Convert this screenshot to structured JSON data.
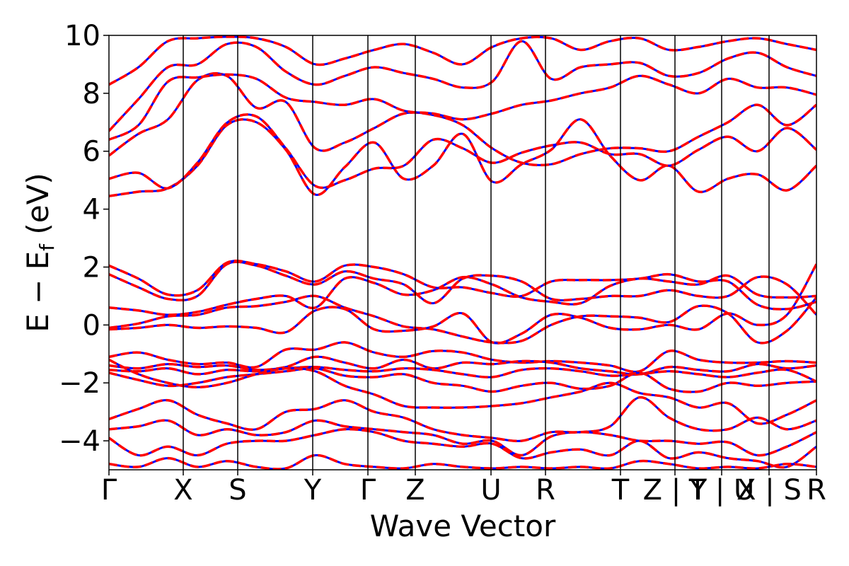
{
  "chart_data": {
    "type": "line",
    "title": "",
    "xlabel": "Wave Vector",
    "ylabel": "E − E_f (eV)",
    "ylabel_parts": {
      "main": "E − E",
      "sub": "f",
      "tail": " (eV)"
    },
    "ylim": [
      -5,
      10
    ],
    "yticks": [
      -4,
      -2,
      0,
      2,
      4,
      6,
      8,
      10
    ],
    "ytick_labels": [
      "−4",
      "−2",
      "0",
      "2",
      "4",
      "6",
      "8",
      "10"
    ],
    "x_range": [
      0,
      10
    ],
    "kpoint_positions": [
      0,
      1.05,
      1.82,
      2.88,
      3.66,
      4.33,
      5.4,
      6.17,
      7.23,
      8.0,
      8.66,
      9.33,
      10
    ],
    "kpoint_labels": [
      {
        "x": 0,
        "label": "Γ"
      },
      {
        "x": 1.05,
        "label": "X"
      },
      {
        "x": 1.82,
        "label": "S"
      },
      {
        "x": 2.88,
        "label": "Y"
      },
      {
        "x": 3.66,
        "label": "Γ"
      },
      {
        "x": 4.33,
        "label": "Z"
      },
      {
        "x": 5.4,
        "label": "U"
      },
      {
        "x": 6.17,
        "label": "R"
      },
      {
        "x": 7.23,
        "label": "T"
      },
      {
        "x": 8.0,
        "label": "Z | Y"
      },
      {
        "x": 8.66,
        "label": "T | U"
      },
      {
        "x": 9.33,
        "label": "X | S"
      },
      {
        "x": 10,
        "label": "R"
      }
    ],
    "grid": false,
    "series": [
      {
        "color": "#0000ff",
        "style": "solid"
      },
      {
        "color": "#ff0000",
        "style": "dashed"
      }
    ],
    "bands": [
      [
        4.45,
        4.6,
        4.72,
        5.5,
        6.9,
        7.0,
        6.05,
        4.5,
        5.45,
        6.3,
        5.05,
        5.5,
        6.6,
        4.95,
        5.55,
        6.05,
        7.1,
        5.85,
        5.0,
        5.5,
        4.6,
        5.05,
        5.2,
        4.65,
        5.5
      ],
      [
        5.05,
        5.25,
        4.72,
        5.6,
        6.98,
        7.2,
        6.1,
        4.8,
        5.0,
        5.4,
        5.5,
        6.4,
        6.1,
        5.6,
        5.95,
        6.2,
        6.3,
        5.9,
        5.9,
        5.5,
        6.05,
        6.5,
        6.0,
        6.8,
        6.05
      ],
      [
        5.85,
        6.6,
        7.1,
        8.45,
        8.6,
        7.5,
        7.7,
        6.1,
        6.3,
        6.8,
        7.3,
        7.25,
        6.9,
        6.1,
        5.6,
        5.55,
        5.9,
        6.1,
        6.1,
        6.0,
        6.5,
        7.0,
        7.6,
        6.9,
        7.6
      ],
      [
        6.4,
        6.9,
        8.4,
        8.55,
        8.65,
        8.5,
        7.85,
        7.7,
        7.6,
        7.8,
        7.4,
        7.3,
        7.1,
        7.3,
        7.6,
        7.75,
        8.0,
        8.2,
        8.6,
        8.3,
        8.0,
        8.5,
        8.2,
        8.2,
        7.95
      ],
      [
        6.7,
        7.8,
        8.9,
        9.0,
        9.7,
        9.6,
        8.75,
        8.3,
        8.6,
        8.9,
        8.7,
        8.5,
        8.2,
        8.4,
        9.8,
        8.5,
        8.9,
        9.0,
        9.05,
        8.6,
        8.7,
        9.2,
        9.4,
        8.9,
        8.6
      ],
      [
        8.3,
        8.9,
        9.8,
        9.9,
        9.95,
        9.9,
        9.6,
        9.0,
        9.2,
        9.5,
        9.7,
        9.4,
        9.0,
        9.6,
        9.9,
        9.9,
        9.5,
        9.8,
        9.9,
        9.5,
        9.6,
        9.8,
        9.9,
        9.7,
        9.5
      ],
      [
        0.6,
        0.5,
        0.35,
        0.45,
        0.7,
        0.9,
        1.0,
        0.6,
        1.6,
        1.45,
        1.05,
        1.2,
        1.65,
        1.4,
        0.95,
        0.8,
        0.75,
        1.35,
        1.6,
        1.5,
        1.4,
        1.7,
        1.05,
        0.95,
        1.0
      ],
      [
        1.75,
        1.3,
        0.9,
        1.0,
        2.1,
        2.05,
        1.7,
        1.4,
        1.85,
        1.6,
        1.4,
        0.75,
        1.6,
        1.7,
        1.5,
        0.9,
        0.9,
        1.0,
        1.0,
        1.2,
        1.0,
        1.0,
        1.65,
        1.4,
        0.35
      ],
      [
        2.05,
        1.6,
        1.05,
        1.2,
        2.15,
        2.1,
        1.85,
        1.5,
        2.05,
        2.0,
        1.75,
        1.3,
        1.3,
        1.1,
        1.0,
        1.5,
        1.55,
        1.55,
        1.6,
        1.75,
        1.5,
        1.5,
        0.7,
        0.55,
        0.8
      ],
      [
        -0.1,
        0.05,
        0.3,
        0.35,
        0.6,
        0.65,
        0.8,
        1.0,
        0.6,
        0.3,
        -0.05,
        -0.15,
        -0.4,
        -0.6,
        -0.55,
        0.0,
        0.3,
        0.3,
        0.25,
        0.1,
        0.65,
        0.4,
        -0.6,
        -0.2,
        0.95
      ],
      [
        -0.15,
        -0.1,
        0.0,
        -0.1,
        -0.05,
        -0.1,
        -0.25,
        0.5,
        0.55,
        -0.15,
        -0.2,
        -0.05,
        0.4,
        -0.6,
        -0.3,
        0.35,
        0.25,
        -0.1,
        -0.15,
        0.0,
        -0.15,
        0.4,
        0.0,
        0.35,
        2.1
      ],
      [
        -1.1,
        -0.95,
        -1.2,
        -1.35,
        -1.3,
        -1.45,
        -0.85,
        -0.85,
        -0.6,
        -0.95,
        -1.1,
        -0.9,
        -0.95,
        -1.2,
        -1.3,
        -1.25,
        -1.3,
        -1.4,
        -1.6,
        -0.9,
        -1.2,
        -1.3,
        -1.3,
        -1.25,
        -1.3
      ],
      [
        -1.4,
        -1.5,
        -1.35,
        -1.45,
        -1.4,
        -1.55,
        -1.45,
        -1.1,
        -1.3,
        -1.5,
        -1.2,
        -1.5,
        -1.3,
        -1.35,
        -1.25,
        -1.3,
        -1.5,
        -1.6,
        -1.7,
        -1.45,
        -1.55,
        -1.6,
        -1.35,
        -1.5,
        -1.4
      ],
      [
        -1.55,
        -1.6,
        -1.5,
        -1.7,
        -1.55,
        -1.6,
        -1.5,
        -1.45,
        -1.55,
        -1.6,
        -1.5,
        -1.55,
        -1.7,
        -1.8,
        -1.55,
        -1.5,
        -1.6,
        -1.75,
        -1.7,
        -1.6,
        -1.7,
        -1.8,
        -1.65,
        -1.55,
        -1.95
      ],
      [
        -1.65,
        -1.9,
        -2.1,
        -2.0,
        -1.8,
        -1.7,
        -1.6,
        -1.5,
        -1.75,
        -1.8,
        -1.7,
        -2.0,
        -2.1,
        -2.3,
        -2.1,
        -2.0,
        -2.2,
        -2.1,
        -1.65,
        -2.2,
        -2.3,
        -2.0,
        -2.1,
        -2.0,
        -1.95
      ],
      [
        -1.2,
        -1.7,
        -2.0,
        -2.15,
        -2.0,
        -1.7,
        -1.5,
        -1.6,
        -2.1,
        -2.4,
        -2.8,
        -2.85,
        -2.85,
        -2.8,
        -2.7,
        -2.5,
        -2.3,
        -2.0,
        -2.35,
        -2.5,
        -2.85,
        -2.7,
        -3.4,
        -3.1,
        -2.6
      ],
      [
        -3.25,
        -2.9,
        -2.6,
        -3.1,
        -3.4,
        -3.6,
        -3.0,
        -2.9,
        -2.6,
        -3.0,
        -3.2,
        -3.6,
        -3.8,
        -3.9,
        -4.0,
        -3.7,
        -3.7,
        -3.5,
        -2.5,
        -3.2,
        -3.6,
        -3.6,
        -3.2,
        -3.6,
        -3.3
      ],
      [
        -3.6,
        -3.5,
        -3.3,
        -3.8,
        -3.6,
        -3.8,
        -3.7,
        -3.3,
        -3.5,
        -3.6,
        -3.7,
        -3.8,
        -4.1,
        -4.0,
        -4.5,
        -3.85,
        -3.7,
        -3.8,
        -4.0,
        -4.0,
        -4.1,
        -4.05,
        -4.5,
        -4.2,
        -3.7
      ],
      [
        -3.9,
        -4.5,
        -4.2,
        -4.5,
        -4.1,
        -4.0,
        -4.0,
        -3.8,
        -3.6,
        -3.7,
        -4.0,
        -4.1,
        -4.2,
        -4.1,
        -4.6,
        -4.4,
        -4.3,
        -4.5,
        -4.0,
        -4.6,
        -4.4,
        -4.6,
        -4.7,
        -4.9,
        -4.2
      ],
      [
        -4.8,
        -4.9,
        -4.6,
        -4.9,
        -4.7,
        -4.9,
        -4.95,
        -4.5,
        -4.8,
        -4.9,
        -4.95,
        -4.8,
        -4.9,
        -4.95,
        -4.9,
        -4.95,
        -4.9,
        -4.95,
        -4.7,
        -4.8,
        -4.95,
        -4.9,
        -4.95,
        -4.8,
        -4.9
      ]
    ]
  }
}
